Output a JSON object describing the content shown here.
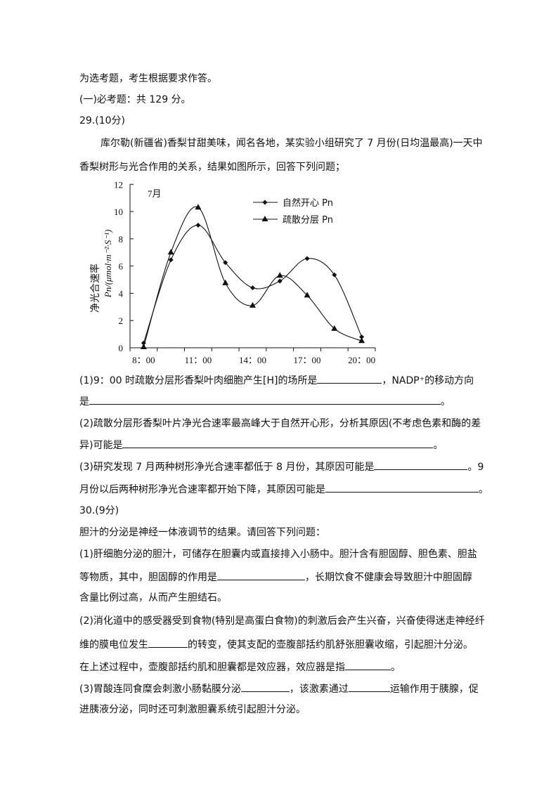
{
  "lines": {
    "l1": "为选考题，考生根据要求作答。",
    "l2": "(一)必考题：共 129 分。",
    "q29_head": "29.(10分)",
    "q29_intro1": "库尔勒(新疆省)香梨甘甜美味，闻名各地，某实验小组研究了 7 月份(日均温最高)一天中",
    "q29_intro2": "香梨树形与光合作用的关系，结果如图所示，回答下列问题；",
    "q29_1a": "(1)9：00 时疏散分层形香梨叶肉细胞产生[H]的场所是",
    "q29_1b": "，NADP⁺的移动方向",
    "q29_1c": "是",
    "q29_1d": "。",
    "q29_2a": "(2)疏散分层形香梨叶片净光合速率最高峰大于自然开心形，分析其原因(不考虑色素和酶的差",
    "q29_2b": "异)可能是",
    "q29_2c": "。",
    "q29_3a": "(3)研究发现 7 月两种树形净光合速率都低于 8 月份，其原因可能是",
    "q29_3b": "。9",
    "q29_3c": "月份以后两种树形净光合速率都开始下降，其原因可能是",
    "q29_3d": "。",
    "q30_head": "30.(9分)",
    "q30_intro": "胆汁的分泌是神经一体液调节的结果。请回答下列问题：",
    "q30_1a": "(1)肝细胞分泌的胆汁，可储存在胆囊内或直接排入小肠中。胆汁含有胆固醇、胆色素、胆盐",
    "q30_1b": "等物质，其中，胆固醇的作用是",
    "q30_1c": "，长期饮食不健康会导致胆汁中胆固醇",
    "q30_1d": "含量比例过高，从而产生胆结石。",
    "q30_2a": "(2)消化道中的感受器受到食物(特别是高蛋白食物)的刺激后会产生兴奋，兴奋使得迷走神经纤",
    "q30_2b": "维的膜电位发生",
    "q30_2c": "的转变，使其支配的壶腹部括约肌舒张胆囊收缩，引起胆汁分泌。",
    "q30_2d": "在上述过程中，壶腹部括约肌和胆囊都是效应器，效应器是指",
    "q30_2e": "。",
    "q30_3a": "(3)胃酸连同食糜会刺激小肠黏膜分泌",
    "q30_3b": "，该激素通过",
    "q30_3c": "运输作用于胰腺，促",
    "q30_3d": "进胰液分泌，同时还可刺激胆囊系统引起胆汁分泌。"
  },
  "chart_data": {
    "type": "line",
    "annotation": "7月",
    "ylabel_line1": "净光合速率",
    "ylabel_line2": "Pn/(μmol·m⁻²·S⁻¹)",
    "ylim": [
      0,
      12
    ],
    "yticks": [
      "0",
      "2",
      "4",
      "6",
      "8",
      "10",
      "12"
    ],
    "x": [
      "8:00",
      "9:30",
      "11:00",
      "12:30",
      "14:00",
      "15:30",
      "17:00",
      "18:30",
      "20:00"
    ],
    "xtick_labels": [
      "8：00",
      "11：00",
      "14：00",
      "17：00",
      "20：00"
    ],
    "legend_position": "top-right",
    "grid": false,
    "series": [
      {
        "name": "自然开心 Pn",
        "marker": "diamond",
        "values": [
          0.35,
          6.45,
          9.0,
          6.25,
          4.4,
          4.9,
          6.55,
          5.35,
          0.8
        ]
      },
      {
        "name": "疏散分层 Pn",
        "marker": "triangle",
        "values": [
          0.05,
          7.0,
          10.3,
          4.75,
          3.1,
          5.3,
          3.85,
          1.4,
          0.5
        ]
      }
    ]
  }
}
